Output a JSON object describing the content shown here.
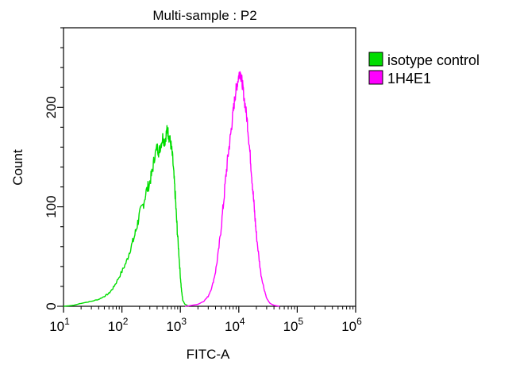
{
  "chart_data": {
    "type": "line",
    "title": "Multi-sample : P2",
    "xlabel": "FITC-A",
    "ylabel": "Count",
    "xscale": "log",
    "xlim": [
      10,
      1000000
    ],
    "ylim": [
      0,
      280
    ],
    "x_ticks": [
      {
        "value": 10,
        "label": "10",
        "exp": "1"
      },
      {
        "value": 100,
        "label": "10",
        "exp": "2"
      },
      {
        "value": 1000,
        "label": "10",
        "exp": "3"
      },
      {
        "value": 10000,
        "label": "10",
        "exp": "4"
      },
      {
        "value": 100000,
        "label": "10",
        "exp": "5"
      },
      {
        "value": 1000000,
        "label": "10",
        "exp": "6"
      }
    ],
    "y_ticks": [
      0,
      100,
      200
    ],
    "grid": false,
    "legend_position": "right",
    "series": [
      {
        "name": "isotype control",
        "color": "#00dd00",
        "points": [
          [
            10,
            0
          ],
          [
            15,
            1
          ],
          [
            20,
            3
          ],
          [
            30,
            5
          ],
          [
            40,
            7
          ],
          [
            50,
            10
          ],
          [
            60,
            13
          ],
          [
            70,
            18
          ],
          [
            80,
            24
          ],
          [
            100,
            35
          ],
          [
            120,
            45
          ],
          [
            140,
            58
          ],
          [
            160,
            68
          ],
          [
            180,
            80
          ],
          [
            200,
            92
          ],
          [
            230,
            102
          ],
          [
            260,
            115
          ],
          [
            300,
            125
          ],
          [
            330,
            135
          ],
          [
            360,
            150
          ],
          [
            400,
            160
          ],
          [
            430,
            155
          ],
          [
            460,
            162
          ],
          [
            500,
            170
          ],
          [
            540,
            165
          ],
          [
            580,
            175
          ],
          [
            600,
            178
          ],
          [
            630,
            172
          ],
          [
            660,
            168
          ],
          [
            700,
            160
          ],
          [
            740,
            148
          ],
          [
            780,
            128
          ],
          [
            820,
            110
          ],
          [
            860,
            88
          ],
          [
            900,
            70
          ],
          [
            950,
            50
          ],
          [
            1000,
            30
          ],
          [
            1050,
            15
          ],
          [
            1100,
            6
          ],
          [
            1200,
            2
          ],
          [
            1400,
            0
          ]
        ]
      },
      {
        "name": "1H4E1",
        "color": "#ff00ff",
        "points": [
          [
            1200,
            0
          ],
          [
            1600,
            1
          ],
          [
            2000,
            2
          ],
          [
            2500,
            5
          ],
          [
            3000,
            10
          ],
          [
            3500,
            20
          ],
          [
            4000,
            35
          ],
          [
            4500,
            55
          ],
          [
            5000,
            80
          ],
          [
            5500,
            105
          ],
          [
            6000,
            130
          ],
          [
            6500,
            150
          ],
          [
            7000,
            165
          ],
          [
            7500,
            180
          ],
          [
            8000,
            195
          ],
          [
            8500,
            208
          ],
          [
            9000,
            218
          ],
          [
            9500,
            225
          ],
          [
            10000,
            232
          ],
          [
            10500,
            236
          ],
          [
            11000,
            230
          ],
          [
            11500,
            224
          ],
          [
            12000,
            215
          ],
          [
            13000,
            200
          ],
          [
            14000,
            185
          ],
          [
            15000,
            165
          ],
          [
            16000,
            145
          ],
          [
            17000,
            125
          ],
          [
            18000,
            105
          ],
          [
            19000,
            88
          ],
          [
            20000,
            72
          ],
          [
            22000,
            50
          ],
          [
            24000,
            32
          ],
          [
            27000,
            18
          ],
          [
            30000,
            8
          ],
          [
            34000,
            3
          ],
          [
            40000,
            1
          ],
          [
            50000,
            0
          ]
        ]
      }
    ]
  }
}
